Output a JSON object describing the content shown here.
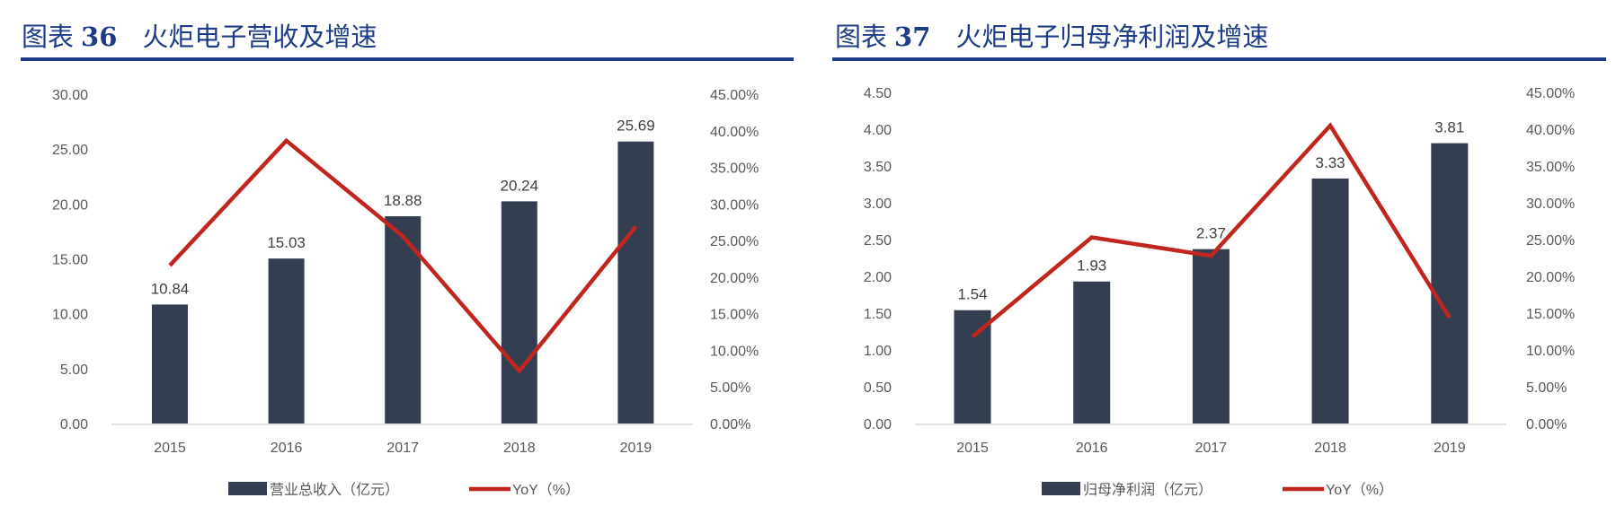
{
  "colors": {
    "bar": "#333f50",
    "line": "#c0261f",
    "title": "#1f3c88",
    "axis": "#d9d9d9"
  },
  "chart_data": [
    {
      "type": "bar+line",
      "title_prefix": "图表",
      "title_number": "36",
      "title": "火炬电子营收及增速",
      "categories": [
        "2015",
        "2016",
        "2017",
        "2018",
        "2019"
      ],
      "series": [
        {
          "name": "营业总收入（亿元）",
          "type": "bar",
          "axis": "left",
          "values": [
            10.84,
            15.03,
            18.88,
            20.24,
            25.69
          ],
          "labels": [
            "10.84",
            "15.03",
            "18.88",
            "20.24",
            "25.69"
          ]
        },
        {
          "name": "YoY（%）",
          "type": "line",
          "axis": "right",
          "values": [
            21.6,
            38.65,
            25.6,
            7.2,
            26.9
          ]
        }
      ],
      "y_left": {
        "range": [
          0,
          30
        ],
        "ticks": [
          "0.00",
          "5.00",
          "10.00",
          "15.00",
          "20.00",
          "25.00",
          "30.00"
        ]
      },
      "y_right": {
        "range": [
          0,
          45
        ],
        "ticks": [
          "0.00%",
          "5.00%",
          "10.00%",
          "15.00%",
          "20.00%",
          "25.00%",
          "30.00%",
          "35.00%",
          "40.00%",
          "45.00%"
        ]
      },
      "grid": false,
      "legend": "bottom"
    },
    {
      "type": "bar+line",
      "title_prefix": "图表",
      "title_number": "37",
      "title": "火炬电子归母净利润及增速",
      "categories": [
        "2015",
        "2016",
        "2017",
        "2018",
        "2019"
      ],
      "series": [
        {
          "name": "归母净利润（亿元）",
          "type": "bar",
          "axis": "left",
          "values": [
            1.54,
            1.93,
            2.37,
            3.33,
            3.81
          ],
          "labels": [
            "1.54",
            "1.93",
            "2.37",
            "3.33",
            "3.81"
          ]
        },
        {
          "name": "YoY（%）",
          "type": "line",
          "axis": "right",
          "values": [
            11.8,
            25.3,
            22.8,
            40.5,
            14.4
          ]
        }
      ],
      "y_left": {
        "range": [
          0,
          4.5
        ],
        "ticks": [
          "0.00",
          "0.50",
          "1.00",
          "1.50",
          "2.00",
          "2.50",
          "3.00",
          "3.50",
          "4.00",
          "4.50"
        ]
      },
      "y_right": {
        "range": [
          0,
          45
        ],
        "ticks": [
          "0.00%",
          "5.00%",
          "10.00%",
          "15.00%",
          "20.00%",
          "25.00%",
          "30.00%",
          "35.00%",
          "40.00%",
          "45.00%"
        ]
      },
      "grid": false,
      "legend": "bottom"
    }
  ]
}
